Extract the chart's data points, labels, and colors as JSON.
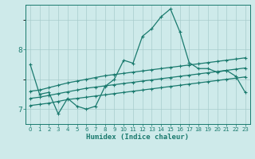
{
  "xlabel": "Humidex (Indice chaleur)",
  "background_color": "#ceeaea",
  "grid_color": "#a8cccc",
  "line_color": "#1a7a6e",
  "x_values": [
    0,
    1,
    2,
    3,
    4,
    5,
    6,
    7,
    8,
    9,
    10,
    11,
    12,
    13,
    14,
    15,
    16,
    17,
    18,
    19,
    20,
    21,
    22,
    23
  ],
  "xlim": [
    -0.5,
    23.5
  ],
  "ylim": [
    6.75,
    8.75
  ],
  "yticks": [
    7,
    8
  ],
  "xticks": [
    0,
    1,
    2,
    3,
    4,
    5,
    6,
    7,
    8,
    9,
    10,
    11,
    12,
    13,
    14,
    15,
    16,
    17,
    18,
    19,
    20,
    21,
    22,
    23
  ],
  "series1_y": [
    7.75,
    7.25,
    7.28,
    6.92,
    7.18,
    7.05,
    7.0,
    7.05,
    7.38,
    7.5,
    7.82,
    7.77,
    8.22,
    8.35,
    8.55,
    8.68,
    8.3,
    7.78,
    7.68,
    7.68,
    7.62,
    7.65,
    7.55,
    7.28
  ],
  "series2_y": [
    7.3,
    7.32,
    7.36,
    7.4,
    7.44,
    7.47,
    7.5,
    7.53,
    7.56,
    7.58,
    7.6,
    7.62,
    7.64,
    7.66,
    7.68,
    7.7,
    7.72,
    7.74,
    7.76,
    7.78,
    7.8,
    7.82,
    7.84,
    7.86
  ],
  "series3_y": [
    7.18,
    7.2,
    7.23,
    7.26,
    7.29,
    7.32,
    7.35,
    7.37,
    7.39,
    7.41,
    7.43,
    7.45,
    7.47,
    7.49,
    7.51,
    7.53,
    7.55,
    7.57,
    7.59,
    7.61,
    7.63,
    7.65,
    7.67,
    7.69
  ],
  "series4_y": [
    7.06,
    7.08,
    7.1,
    7.13,
    7.16,
    7.18,
    7.2,
    7.22,
    7.24,
    7.26,
    7.28,
    7.3,
    7.32,
    7.34,
    7.36,
    7.38,
    7.4,
    7.42,
    7.44,
    7.46,
    7.48,
    7.5,
    7.52,
    7.54
  ]
}
